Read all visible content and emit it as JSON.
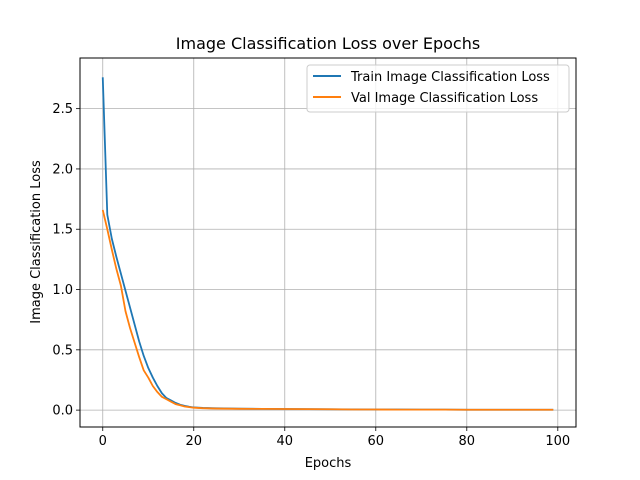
{
  "chart_data": {
    "type": "line",
    "title": "Image Classification Loss over Epochs",
    "xlabel": "Epochs",
    "ylabel": "Image Classification Loss",
    "xlim": [
      -5,
      104
    ],
    "ylim": [
      -0.14,
      2.92
    ],
    "xticks": [
      0,
      20,
      40,
      60,
      80,
      100
    ],
    "yticks": [
      0.0,
      0.5,
      1.0,
      1.5,
      2.0,
      2.5
    ],
    "xtick_labels": [
      "0",
      "20",
      "40",
      "60",
      "80",
      "100"
    ],
    "ytick_labels": [
      "0.0",
      "0.5",
      "1.0",
      "1.5",
      "2.0",
      "2.5"
    ],
    "grid": true,
    "legend_position": "upper-right",
    "series": [
      {
        "name": "Train Image Classification Loss",
        "color": "#1f77b4",
        "x": [
          0,
          1,
          2,
          3,
          4,
          5,
          6,
          7,
          8,
          9,
          10,
          11,
          12,
          13,
          14,
          15,
          16,
          17,
          18,
          19,
          20,
          22,
          25,
          30,
          35,
          40,
          45,
          50,
          55,
          60,
          65,
          70,
          75,
          80,
          85,
          90,
          95,
          99
        ],
        "y": [
          2.76,
          1.62,
          1.42,
          1.27,
          1.13,
          0.99,
          0.85,
          0.71,
          0.57,
          0.45,
          0.35,
          0.27,
          0.2,
          0.14,
          0.1,
          0.08,
          0.06,
          0.045,
          0.035,
          0.028,
          0.022,
          0.018,
          0.015,
          0.012,
          0.01,
          0.009,
          0.008,
          0.007,
          0.006,
          0.005,
          0.005,
          0.004,
          0.004,
          0.003,
          0.003,
          0.003,
          0.003,
          0.003
        ]
      },
      {
        "name": "Val Image Classification Loss",
        "color": "#ff7f0e",
        "x": [
          0,
          1,
          2,
          3,
          4,
          5,
          6,
          7,
          8,
          9,
          10,
          11,
          12,
          13,
          14,
          15,
          16,
          17,
          18,
          19,
          20,
          22,
          25,
          30,
          35,
          40,
          45,
          50,
          55,
          60,
          65,
          70,
          75,
          80,
          85,
          90,
          95,
          99
        ],
        "y": [
          1.66,
          1.5,
          1.33,
          1.17,
          1.03,
          0.82,
          0.68,
          0.56,
          0.44,
          0.33,
          0.27,
          0.2,
          0.15,
          0.11,
          0.09,
          0.07,
          0.05,
          0.04,
          0.03,
          0.025,
          0.02,
          0.016,
          0.013,
          0.011,
          0.01,
          0.009,
          0.008,
          0.007,
          0.005,
          0.005,
          0.004,
          0.004,
          0.004,
          0.003,
          0.003,
          0.003,
          0.003,
          0.003
        ]
      }
    ]
  }
}
